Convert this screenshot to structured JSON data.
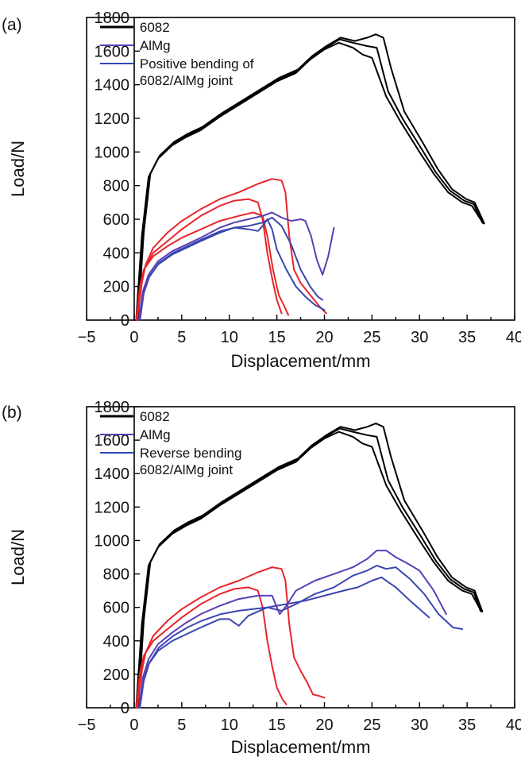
{
  "chart_data": [
    {
      "type": "line",
      "panel_label": "(a)",
      "xlabel": "Displacement/mm",
      "ylabel": "Load/N",
      "xlim": [
        -5,
        40
      ],
      "ylim": [
        0,
        1800
      ],
      "xticks": [
        "−5",
        "0",
        "5",
        "10",
        "15",
        "20",
        "25",
        "30",
        "35",
        "40"
      ],
      "yticks": [
        "0",
        "200",
        "400",
        "600",
        "800",
        "1000",
        "1200",
        "1400",
        "1600",
        "1800"
      ],
      "legend_position": "top-left",
      "legend": [
        {
          "label": "6082",
          "color": "#000000"
        },
        {
          "label": "AlMg",
          "color": "#5a3fb5"
        },
        {
          "label": "Positive bending of",
          "label2": "6082/AlMg joint",
          "color": "#2f47b8"
        }
      ],
      "series": [
        {
          "name": "6082",
          "color": "#000000",
          "x": [
            0.2,
            0.8,
            1.5,
            2.5,
            4,
            5.5,
            7,
            9,
            11,
            13,
            15,
            17,
            18.5,
            20,
            21.5,
            23,
            24,
            25,
            26.5,
            28,
            30,
            31.5,
            33,
            34.5,
            35.5,
            36.7
          ],
          "y": [
            0,
            500,
            850,
            960,
            1040,
            1090,
            1130,
            1210,
            1280,
            1350,
            1420,
            1470,
            1550,
            1610,
            1650,
            1620,
            1580,
            1560,
            1330,
            1180,
            1000,
            870,
            760,
            700,
            680,
            575
          ]
        },
        {
          "name": "6082",
          "color": "#000000",
          "x": [
            0.3,
            0.9,
            1.6,
            2.6,
            4.1,
            5.6,
            7.1,
            9.1,
            11.1,
            13.1,
            15.1,
            17.1,
            18.6,
            20.1,
            21.6,
            23,
            24.5,
            25.5,
            26.7,
            28.2,
            30.2,
            31.7,
            33.2,
            34.7,
            35.7,
            36.6
          ],
          "y": [
            0,
            510,
            860,
            970,
            1050,
            1100,
            1140,
            1220,
            1290,
            1360,
            1430,
            1480,
            1560,
            1620,
            1670,
            1650,
            1630,
            1620,
            1360,
            1200,
            1020,
            880,
            770,
            710,
            690,
            580
          ]
        },
        {
          "name": "6082",
          "color": "#000000",
          "x": [
            0.4,
            1,
            1.7,
            2.7,
            4.2,
            5.7,
            7.2,
            9.2,
            11.2,
            13.2,
            15.2,
            17.2,
            18.7,
            20.2,
            21.7,
            23.2,
            24.5,
            25.4,
            26.2,
            27,
            28.4,
            30.4,
            31.9,
            33.4,
            34.9,
            35.8,
            36.8
          ],
          "y": [
            0,
            520,
            870,
            980,
            1060,
            1110,
            1150,
            1230,
            1300,
            1370,
            1440,
            1490,
            1570,
            1630,
            1680,
            1660,
            1680,
            1700,
            1680,
            1500,
            1240,
            1050,
            900,
            780,
            720,
            700,
            575
          ]
        },
        {
          "name": "AlMg",
          "color": "#e8252b",
          "x": [
            0.2,
            0.6,
            1,
            2,
            3.5,
            5,
            7,
            9,
            11,
            12.5,
            13.5,
            14,
            14.6,
            15.2,
            15.8,
            16.2
          ],
          "y": [
            0,
            200,
            300,
            380,
            440,
            490,
            540,
            590,
            620,
            640,
            620,
            500,
            300,
            150,
            80,
            30
          ]
        },
        {
          "name": "AlMg",
          "color": "#e8252b",
          "x": [
            0.3,
            0.7,
            1.1,
            2,
            3.5,
            5,
            7,
            9,
            10.5,
            12,
            13,
            13.5,
            14,
            14.5,
            15,
            15.5
          ],
          "y": [
            0,
            210,
            310,
            400,
            470,
            540,
            620,
            680,
            710,
            720,
            700,
            600,
            400,
            250,
            120,
            40
          ]
        },
        {
          "name": "AlMg",
          "color": "#e8252b",
          "x": [
            0.3,
            0.8,
            1.2,
            2,
            3.5,
            5,
            7,
            9,
            11,
            13,
            14.5,
            15.5,
            15.9,
            16.3,
            16.8,
            17.5,
            18.5,
            19.5,
            20.2
          ],
          "y": [
            0,
            220,
            330,
            430,
            520,
            590,
            660,
            720,
            760,
            810,
            840,
            830,
            760,
            500,
            300,
            220,
            150,
            80,
            40
          ]
        },
        {
          "name": "Positive bending of 6082/AlMg joint",
          "color": "#3a46b0",
          "x": [
            0.5,
            0.9,
            1.5,
            2.5,
            4,
            5.5,
            7,
            9,
            10.5,
            12,
            13.5,
            14.5,
            15.5,
            16.5,
            17.5,
            18.5,
            19.3,
            19.8
          ],
          "y": [
            0,
            150,
            250,
            330,
            390,
            430,
            470,
            520,
            550,
            560,
            580,
            610,
            560,
            450,
            300,
            200,
            140,
            120
          ]
        },
        {
          "name": "Positive bending of 6082/AlMg joint",
          "color": "#3a46b0",
          "x": [
            0.6,
            1,
            1.6,
            2.6,
            4.1,
            5.6,
            7.1,
            9.1,
            10.6,
            12.1,
            13,
            13.5,
            14,
            14.5,
            15,
            16,
            17,
            18,
            19,
            20
          ],
          "y": [
            0,
            160,
            260,
            340,
            400,
            440,
            480,
            530,
            550,
            540,
            530,
            560,
            600,
            540,
            420,
            300,
            200,
            140,
            90,
            60
          ]
        },
        {
          "name": "AlMg",
          "color": "#5a3fb5",
          "x": [
            0.5,
            0.9,
            1.5,
            2.5,
            4,
            5.5,
            7,
            9,
            10.5,
            12,
            13.5,
            14.5,
            15.5,
            16.5,
            17.5,
            18,
            18.6,
            19.2,
            19.8,
            20.4,
            21
          ],
          "y": [
            0,
            170,
            270,
            350,
            410,
            450,
            490,
            550,
            580,
            600,
            620,
            640,
            610,
            590,
            600,
            590,
            500,
            360,
            270,
            380,
            550
          ]
        }
      ]
    },
    {
      "type": "line",
      "panel_label": "(b)",
      "xlabel": "Displacement/mm",
      "ylabel": "Load/N",
      "xlim": [
        -5,
        40
      ],
      "ylim": [
        0,
        1800
      ],
      "xticks": [
        "−5",
        "0",
        "5",
        "10",
        "15",
        "20",
        "25",
        "30",
        "35",
        "40"
      ],
      "yticks": [
        "0",
        "200",
        "400",
        "600",
        "800",
        "1000",
        "1200",
        "1400",
        "1600",
        "1800"
      ],
      "legend_position": "top-left",
      "legend": [
        {
          "label": "6082",
          "color": "#000000"
        },
        {
          "label": "AlMg",
          "color": "#5a3fb5"
        },
        {
          "label": "Reverse bending",
          "label2": "6082/AlMg joint",
          "color": "#2f47b8"
        }
      ],
      "series": [
        {
          "name": "6082",
          "color": "#000000",
          "x": [
            0.2,
            0.8,
            1.5,
            2.5,
            4,
            5.5,
            7,
            9,
            11,
            13,
            15,
            17,
            18.5,
            20,
            21.5,
            23,
            24,
            25,
            26.5,
            28,
            30,
            31.5,
            33,
            34.5,
            35.5,
            36.5
          ],
          "y": [
            0,
            500,
            850,
            960,
            1040,
            1090,
            1130,
            1210,
            1280,
            1350,
            1420,
            1470,
            1550,
            1610,
            1650,
            1620,
            1580,
            1560,
            1330,
            1180,
            1000,
            870,
            760,
            700,
            680,
            575
          ]
        },
        {
          "name": "6082",
          "color": "#000000",
          "x": [
            0.3,
            0.9,
            1.6,
            2.6,
            4.1,
            5.6,
            7.1,
            9.1,
            11.1,
            13.1,
            15.1,
            17.1,
            18.6,
            20.1,
            21.6,
            23,
            24.5,
            25.5,
            26.7,
            28.2,
            30.2,
            31.7,
            33.2,
            34.7,
            35.7,
            36.4
          ],
          "y": [
            0,
            510,
            860,
            970,
            1050,
            1100,
            1140,
            1220,
            1290,
            1360,
            1430,
            1480,
            1560,
            1620,
            1670,
            1650,
            1630,
            1620,
            1360,
            1200,
            1020,
            880,
            770,
            710,
            690,
            580
          ]
        },
        {
          "name": "6082",
          "color": "#000000",
          "x": [
            0.4,
            1,
            1.7,
            2.7,
            4.2,
            5.7,
            7.2,
            9.2,
            11.2,
            13.2,
            15.2,
            17.2,
            18.7,
            20.2,
            21.7,
            23.2,
            24.5,
            25.4,
            26.2,
            27,
            28.4,
            30.4,
            31.9,
            33.4,
            34.9,
            35.8,
            36.6
          ],
          "y": [
            0,
            520,
            870,
            980,
            1060,
            1110,
            1150,
            1230,
            1300,
            1370,
            1440,
            1490,
            1570,
            1630,
            1680,
            1660,
            1680,
            1700,
            1680,
            1500,
            1240,
            1050,
            900,
            780,
            720,
            700,
            575
          ]
        },
        {
          "name": "AlMg",
          "color": "#e8252b",
          "x": [
            0.2,
            0.6,
            1,
            2,
            3.5,
            5,
            7,
            9,
            10.5,
            12,
            13,
            13.5,
            14,
            14.5,
            15,
            15.6,
            16
          ],
          "y": [
            0,
            210,
            310,
            400,
            470,
            540,
            620,
            680,
            710,
            720,
            700,
            600,
            400,
            250,
            120,
            50,
            20
          ]
        },
        {
          "name": "AlMg",
          "color": "#e8252b",
          "x": [
            0.3,
            0.8,
            1.2,
            2,
            3.5,
            5,
            7,
            9,
            11,
            13,
            14.5,
            15.5,
            15.9,
            16.3,
            16.8,
            17.5,
            18.2,
            18.8,
            19.5,
            20
          ],
          "y": [
            0,
            220,
            330,
            430,
            520,
            590,
            660,
            720,
            760,
            810,
            840,
            830,
            760,
            500,
            300,
            220,
            150,
            80,
            70,
            60
          ]
        },
        {
          "name": "Reverse bending 6082/AlMg joint",
          "color": "#3a46b0",
          "x": [
            0.5,
            0.9,
            1.5,
            2.5,
            4,
            5.5,
            7,
            9,
            10,
            11,
            12,
            14,
            16,
            18,
            20,
            22,
            23.5,
            25,
            26,
            27.5,
            29,
            31
          ],
          "y": [
            0,
            150,
            260,
            340,
            400,
            440,
            480,
            530,
            530,
            490,
            550,
            600,
            620,
            640,
            670,
            700,
            720,
            760,
            780,
            720,
            640,
            540
          ]
        },
        {
          "name": "Reverse bending 6082/AlMg joint",
          "color": "#3a46b0",
          "x": [
            0.6,
            1,
            1.6,
            2.6,
            4.1,
            5.6,
            7.1,
            9.1,
            11,
            12.5,
            14,
            15.5,
            17,
            19,
            21,
            23,
            24.5,
            25.5,
            26.5,
            27.5,
            29,
            30.5,
            32,
            33.5,
            34.5
          ],
          "y": [
            0,
            160,
            270,
            360,
            430,
            480,
            520,
            560,
            580,
            590,
            600,
            580,
            620,
            680,
            720,
            790,
            820,
            850,
            830,
            840,
            770,
            680,
            560,
            480,
            470
          ]
        },
        {
          "name": "AlMg",
          "color": "#5a3fb5",
          "x": [
            0.5,
            0.9,
            1.5,
            2.5,
            4,
            5.5,
            7,
            9,
            11,
            13,
            14.5,
            15.3,
            16,
            17,
            19,
            21,
            23,
            24.5,
            25.5,
            26.5,
            27.5,
            28.5,
            30,
            31.5,
            32.8
          ],
          "y": [
            0,
            180,
            290,
            380,
            450,
            510,
            560,
            610,
            650,
            670,
            670,
            560,
            610,
            700,
            760,
            800,
            840,
            890,
            940,
            940,
            900,
            870,
            820,
            700,
            560
          ]
        }
      ]
    }
  ]
}
